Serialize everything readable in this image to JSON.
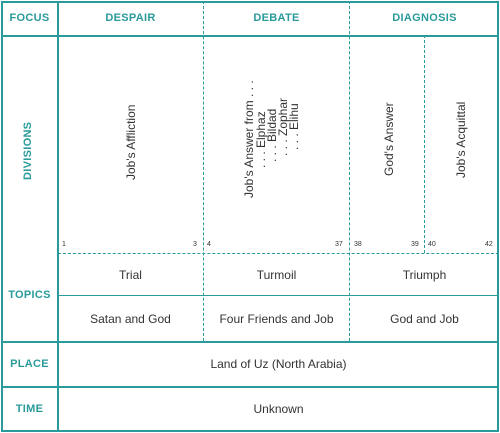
{
  "header": {
    "focus": "FOCUS",
    "despair": "DESPAIR",
    "debate": "DEBATE",
    "diagnosis": "DIAGNOSIS"
  },
  "rows": {
    "divisions": "DIVISIONS",
    "topics": "TOPICS",
    "place": "PLACE",
    "time": "TIME"
  },
  "divisions": {
    "affliction": "Job's Affliction",
    "answer_from": "Job's Answer from . . .",
    "speakers": [
      ". . . Elphaz",
      ". . . Bildad",
      ". . . Zophar",
      ". . . Elihu"
    ],
    "gods_answer": "God's Answer",
    "acquittal": "Job's Acquittal",
    "chapters": [
      "1",
      "3",
      "4",
      "37",
      "38",
      "39",
      "40",
      "42"
    ]
  },
  "topics": {
    "trial": "Trial",
    "turmoil": "Turmoil",
    "triumph": "Triumph",
    "satan_and_god": "Satan and God",
    "four_friends": "Four Friends and Job",
    "god_and_job": "God and Job"
  },
  "place": "Land of Uz (North Arabia)",
  "time": "Unknown",
  "colors": {
    "accent": "#2a9a9a",
    "text": "#333333"
  }
}
